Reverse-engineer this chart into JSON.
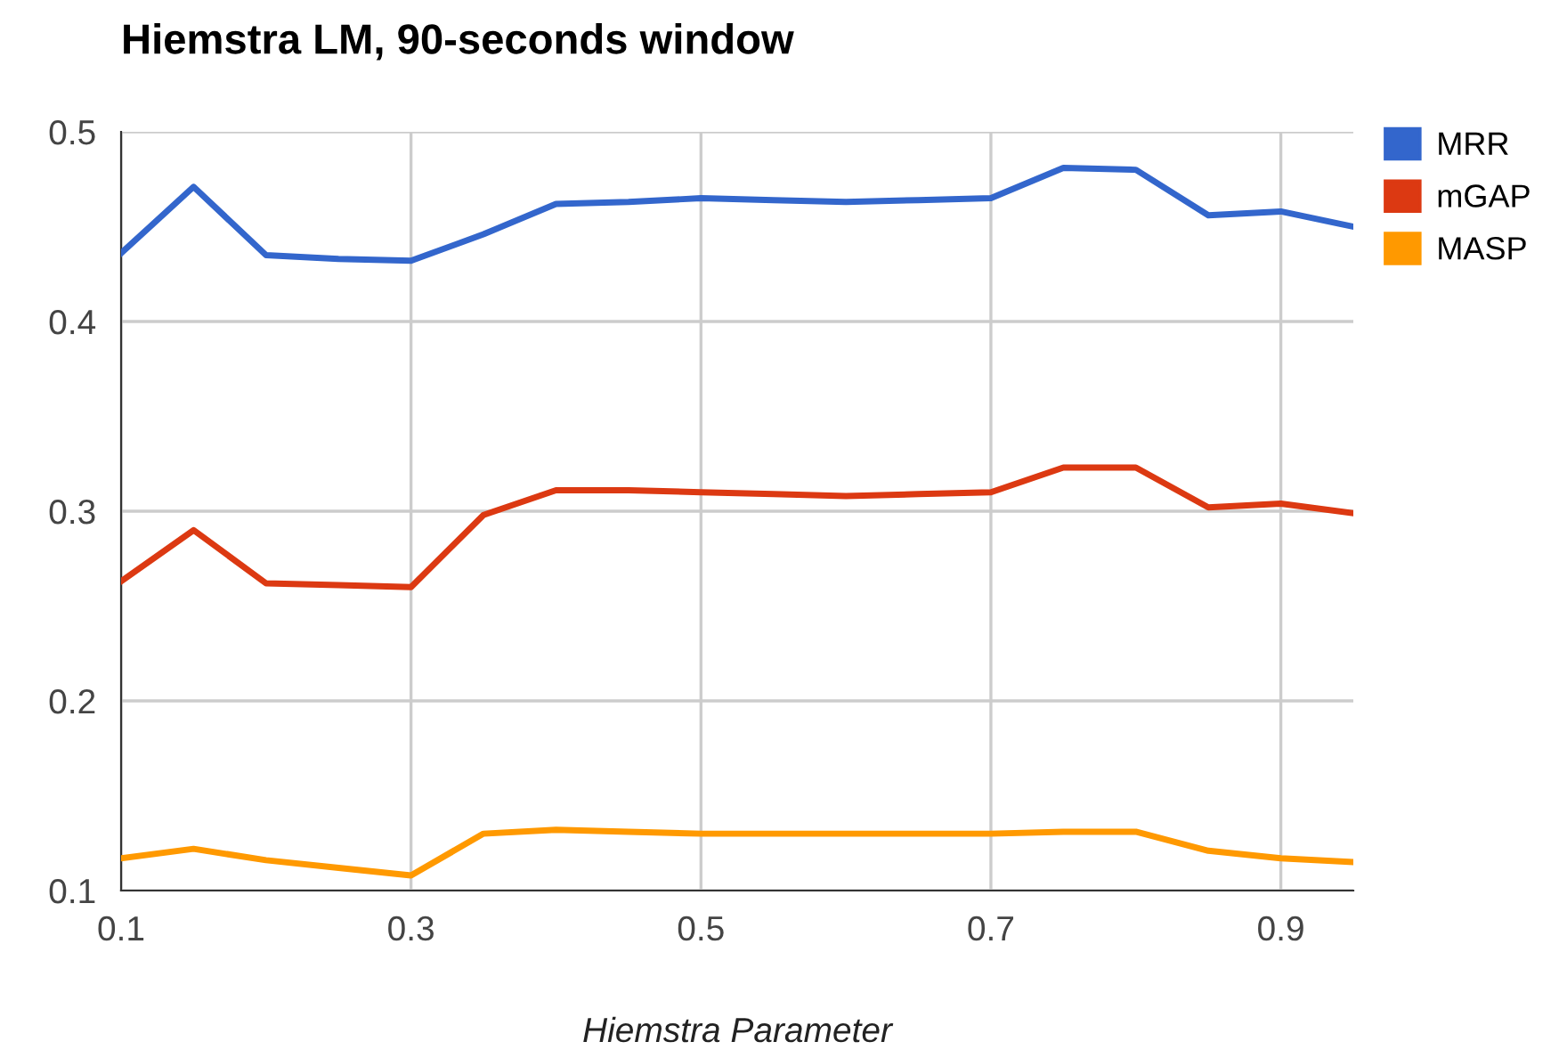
{
  "chart_data": {
    "type": "line",
    "title": "Hiemstra LM, 90-seconds window",
    "xlabel": "Hiemstra Parameter",
    "x": [
      0.1,
      0.15,
      0.2,
      0.25,
      0.3,
      0.35,
      0.4,
      0.45,
      0.5,
      0.55,
      0.6,
      0.65,
      0.7,
      0.75,
      0.8,
      0.85,
      0.9,
      0.95
    ],
    "series": [
      {
        "name": "MRR",
        "color": "#3366cc",
        "values": [
          0.436,
          0.471,
          0.435,
          0.433,
          0.432,
          0.446,
          0.462,
          0.463,
          0.465,
          0.464,
          0.463,
          0.464,
          0.465,
          0.481,
          0.48,
          0.456,
          0.458,
          0.45
        ]
      },
      {
        "name": "mGAP",
        "color": "#dc3912",
        "values": [
          0.263,
          0.29,
          0.262,
          0.261,
          0.26,
          0.298,
          0.311,
          0.311,
          0.31,
          0.309,
          0.308,
          0.309,
          0.31,
          0.323,
          0.323,
          0.302,
          0.304,
          0.299
        ]
      },
      {
        "name": "MASP",
        "color": "#ff9900",
        "values": [
          0.117,
          0.122,
          0.116,
          0.112,
          0.108,
          0.13,
          0.132,
          0.131,
          0.13,
          0.13,
          0.13,
          0.13,
          0.13,
          0.131,
          0.131,
          0.121,
          0.117,
          0.115
        ]
      }
    ],
    "xlim": [
      0.1,
      0.95
    ],
    "ylim": [
      0.1,
      0.5
    ],
    "xticks": [
      0.1,
      0.3,
      0.5,
      0.7,
      0.9
    ],
    "yticks": [
      0.1,
      0.2,
      0.3,
      0.4,
      0.5
    ],
    "grid": true,
    "legend": "top right",
    "marker": "none",
    "line_style": "solid"
  }
}
